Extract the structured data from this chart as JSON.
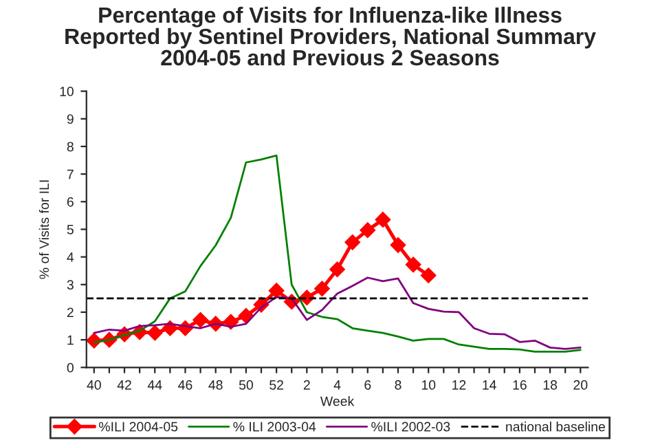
{
  "chart_data": {
    "type": "line",
    "title": "Percentage of Visits for Influenza-like Illness\nReported by Sentinel Providers, National Summary\n2004-05 and Previous 2 Seasons",
    "xlabel": "Week",
    "ylabel": "% of Visits for ILI",
    "categories": [
      "40",
      null,
      "42",
      null,
      "44",
      null,
      "46",
      null,
      "48",
      null,
      "50",
      null,
      "52",
      null,
      "2",
      null,
      "4",
      null,
      "6",
      null,
      "8",
      null,
      "10",
      null,
      "12",
      null,
      "14",
      null,
      "16",
      null,
      "18",
      null,
      "20"
    ],
    "series": [
      {
        "name": "%ILI 2004-05",
        "color": "#ff0000",
        "marker": "diamond",
        "values": [
          0.97,
          1.0,
          1.2,
          1.28,
          1.25,
          1.42,
          1.42,
          1.72,
          1.58,
          1.65,
          1.87,
          2.27,
          2.78,
          2.38,
          2.53,
          2.85,
          3.55,
          4.53,
          4.97,
          5.35,
          4.43,
          3.72,
          3.33,
          null,
          null,
          null,
          null,
          null,
          null,
          null,
          null,
          null,
          null
        ]
      },
      {
        "name": "% ILI 2003-04",
        "color": "#008000",
        "values": [
          0.9,
          1.0,
          1.17,
          1.33,
          1.67,
          2.5,
          2.75,
          3.67,
          4.42,
          5.42,
          7.42,
          7.53,
          7.67,
          3.0,
          2.0,
          1.83,
          1.75,
          1.42,
          1.33,
          1.25,
          1.12,
          0.97,
          1.03,
          1.03,
          0.83,
          0.75,
          0.67,
          0.67,
          0.65,
          0.57,
          0.57,
          0.57,
          0.63
        ]
      },
      {
        "name": "%ILI 2002-03",
        "color": "#800080",
        "values": [
          1.25,
          1.37,
          1.33,
          1.5,
          1.53,
          1.58,
          1.5,
          1.42,
          1.58,
          1.47,
          1.58,
          2.17,
          2.55,
          2.5,
          1.72,
          2.08,
          2.67,
          2.95,
          3.25,
          3.12,
          3.22,
          2.33,
          2.12,
          2.02,
          2.0,
          1.42,
          1.22,
          1.2,
          0.92,
          0.97,
          0.72,
          0.67,
          0.72
        ]
      }
    ],
    "ref_lines": [
      {
        "axis": "y",
        "value": 2.5,
        "label": "national baseline",
        "color": "#000000",
        "line_style": "dashed"
      }
    ],
    "ylim": [
      0,
      10
    ],
    "yticks": [
      0,
      1,
      2,
      3,
      4,
      5,
      6,
      7,
      8,
      9,
      10
    ],
    "grid": false,
    "legend": "bottom"
  }
}
